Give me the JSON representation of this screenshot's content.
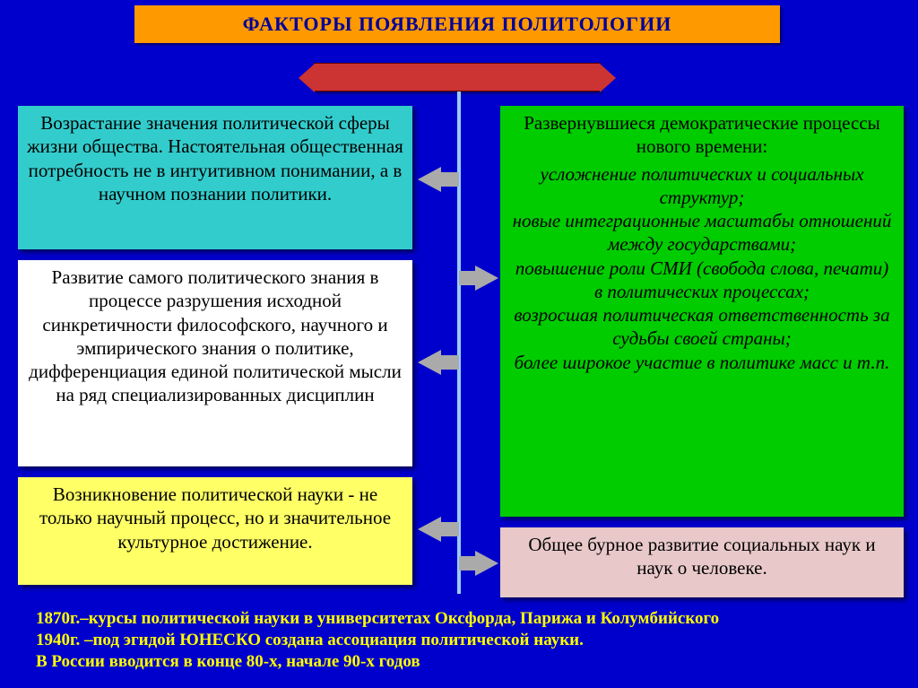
{
  "title": "ФАКТОРЫ ПОЯВЛЕНИЯ ПОЛИТОЛОГИИ",
  "colors": {
    "background": "#0000cc",
    "title_bg": "#ff9900",
    "title_text": "#000099",
    "red_bar": "#cc3333",
    "center_line": "#99ccff",
    "arrow": "#aaaaaa",
    "footer_text": "#ffff00"
  },
  "boxes": {
    "left1": {
      "bg": "#33cccc",
      "text": "Возрастание значения политической сферы жизни общества. Настоятельная общественная потребность не в интуитивном понимании, а в научном познании политики."
    },
    "left2": {
      "bg": "#ffffff",
      "text": "Развитие самого политического знания в процессе разрушения исходной синкретичности философского, научного и эмпирического знания о политике, дифференциация единой политической мысли на ряд специализированных дисциплин"
    },
    "left3": {
      "bg": "#ffff66",
      "text": "Возникновение политической науки - не только научный процесс, но и значительное культурное достижение."
    },
    "right1": {
      "bg": "#00cc00",
      "header": "Развернувшиеся демократические процессы нового времени:",
      "body": "усложнение политических и социальных структур;\nновые интеграционные масштабы отношений между государствами;\nповышение роли СМИ (свобода слова, печати) в политических процессах;\nвозросшая политическая ответственность за судьбы своей страны;\nболее широкое участие в политике масс и т.п."
    },
    "right2": {
      "bg": "#e8c8c8",
      "text": "Общее бурное развитие социальных наук и наук о человеке."
    }
  },
  "footer": {
    "line1": "1870г.–курсы политической науки в университетах Оксфорда, Парижа и Колумбийского",
    "line2": "1940г. –под эгидой ЮНЕСКО создана ассоциация политической науки.",
    "line3": "В России вводится в конце 80-х, начале 90-х годов"
  },
  "fonts": {
    "title_size": 22,
    "box_size": 21,
    "footer_size": 19,
    "family": "Times New Roman"
  }
}
